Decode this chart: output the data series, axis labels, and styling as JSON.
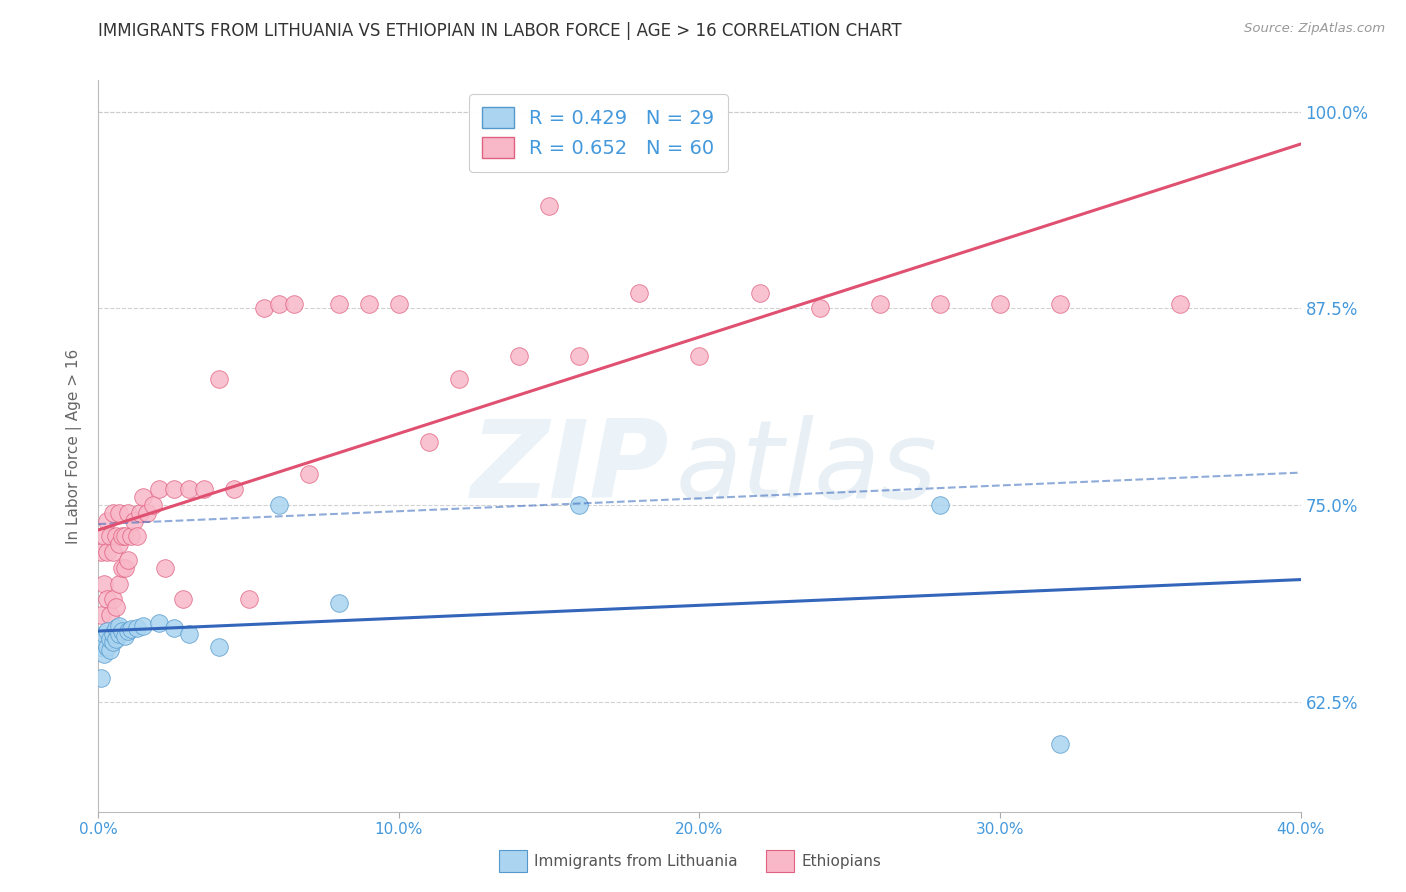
{
  "title": "IMMIGRANTS FROM LITHUANIA VS ETHIOPIAN IN LABOR FORCE | AGE > 16 CORRELATION CHART",
  "source": "Source: ZipAtlas.com",
  "ylabel": "In Labor Force | Age > 16",
  "x_min": 0.0,
  "x_max": 0.4,
  "y_min": 0.555,
  "y_max": 1.02,
  "y_ticks": [
    0.625,
    0.75,
    0.875,
    1.0
  ],
  "y_tick_labels": [
    "62.5%",
    "75.0%",
    "87.5%",
    "100.0%"
  ],
  "x_ticks": [
    0.0,
    0.1,
    0.2,
    0.3,
    0.4
  ],
  "x_tick_labels": [
    "0.0%",
    "10.0%",
    "20.0%",
    "30.0%",
    "40.0%"
  ],
  "lithuania_scatter_color": "#aad4f0",
  "lithuania_edge_color": "#5599cc",
  "ethiopia_scatter_color": "#f8b8c8",
  "ethiopia_edge_color": "#e06080",
  "lithuania_line_color": "#3366bb",
  "ethiopia_line_color": "#e05070",
  "background_color": "#ffffff",
  "grid_color": "#cccccc",
  "title_color": "#333333",
  "axis_label_color": "#4499dd",
  "legend_label_lithuania": "Immigrants from Lithuania",
  "legend_label_ethiopia": "Ethiopians",
  "R_lithuania": 0.429,
  "N_lithuania": 29,
  "R_ethiopia": 0.652,
  "N_ethiopia": 60,
  "lith_x": [
    0.001,
    0.001,
    0.002,
    0.002,
    0.003,
    0.003,
    0.004,
    0.004,
    0.005,
    0.005,
    0.006,
    0.006,
    0.007,
    0.007,
    0.008,
    0.009,
    0.01,
    0.011,
    0.013,
    0.015,
    0.02,
    0.025,
    0.03,
    0.04,
    0.06,
    0.08,
    0.16,
    0.28,
    0.32
  ],
  "lith_y": [
    0.66,
    0.64,
    0.655,
    0.668,
    0.66,
    0.67,
    0.658,
    0.665,
    0.663,
    0.668,
    0.665,
    0.672,
    0.668,
    0.673,
    0.67,
    0.667,
    0.67,
    0.671,
    0.672,
    0.673,
    0.675,
    0.672,
    0.668,
    0.66,
    0.75,
    0.688,
    0.75,
    0.75,
    0.598
  ],
  "eth_x": [
    0.001,
    0.001,
    0.002,
    0.002,
    0.003,
    0.003,
    0.003,
    0.004,
    0.004,
    0.005,
    0.005,
    0.005,
    0.006,
    0.006,
    0.007,
    0.007,
    0.007,
    0.008,
    0.008,
    0.009,
    0.009,
    0.01,
    0.01,
    0.011,
    0.012,
    0.013,
    0.014,
    0.015,
    0.016,
    0.018,
    0.02,
    0.022,
    0.025,
    0.028,
    0.03,
    0.035,
    0.04,
    0.045,
    0.05,
    0.055,
    0.06,
    0.065,
    0.07,
    0.08,
    0.09,
    0.1,
    0.11,
    0.12,
    0.14,
    0.15,
    0.16,
    0.18,
    0.2,
    0.22,
    0.24,
    0.26,
    0.28,
    0.3,
    0.32,
    0.36
  ],
  "eth_y": [
    0.68,
    0.72,
    0.7,
    0.73,
    0.69,
    0.72,
    0.74,
    0.68,
    0.73,
    0.69,
    0.72,
    0.745,
    0.685,
    0.73,
    0.7,
    0.725,
    0.745,
    0.71,
    0.73,
    0.71,
    0.73,
    0.715,
    0.745,
    0.73,
    0.74,
    0.73,
    0.745,
    0.755,
    0.745,
    0.75,
    0.76,
    0.71,
    0.76,
    0.69,
    0.76,
    0.76,
    0.83,
    0.76,
    0.69,
    0.875,
    0.878,
    0.878,
    0.77,
    0.878,
    0.878,
    0.878,
    0.79,
    0.83,
    0.845,
    0.94,
    0.845,
    0.885,
    0.845,
    0.885,
    0.875,
    0.878,
    0.878,
    0.878,
    0.878,
    0.878
  ]
}
